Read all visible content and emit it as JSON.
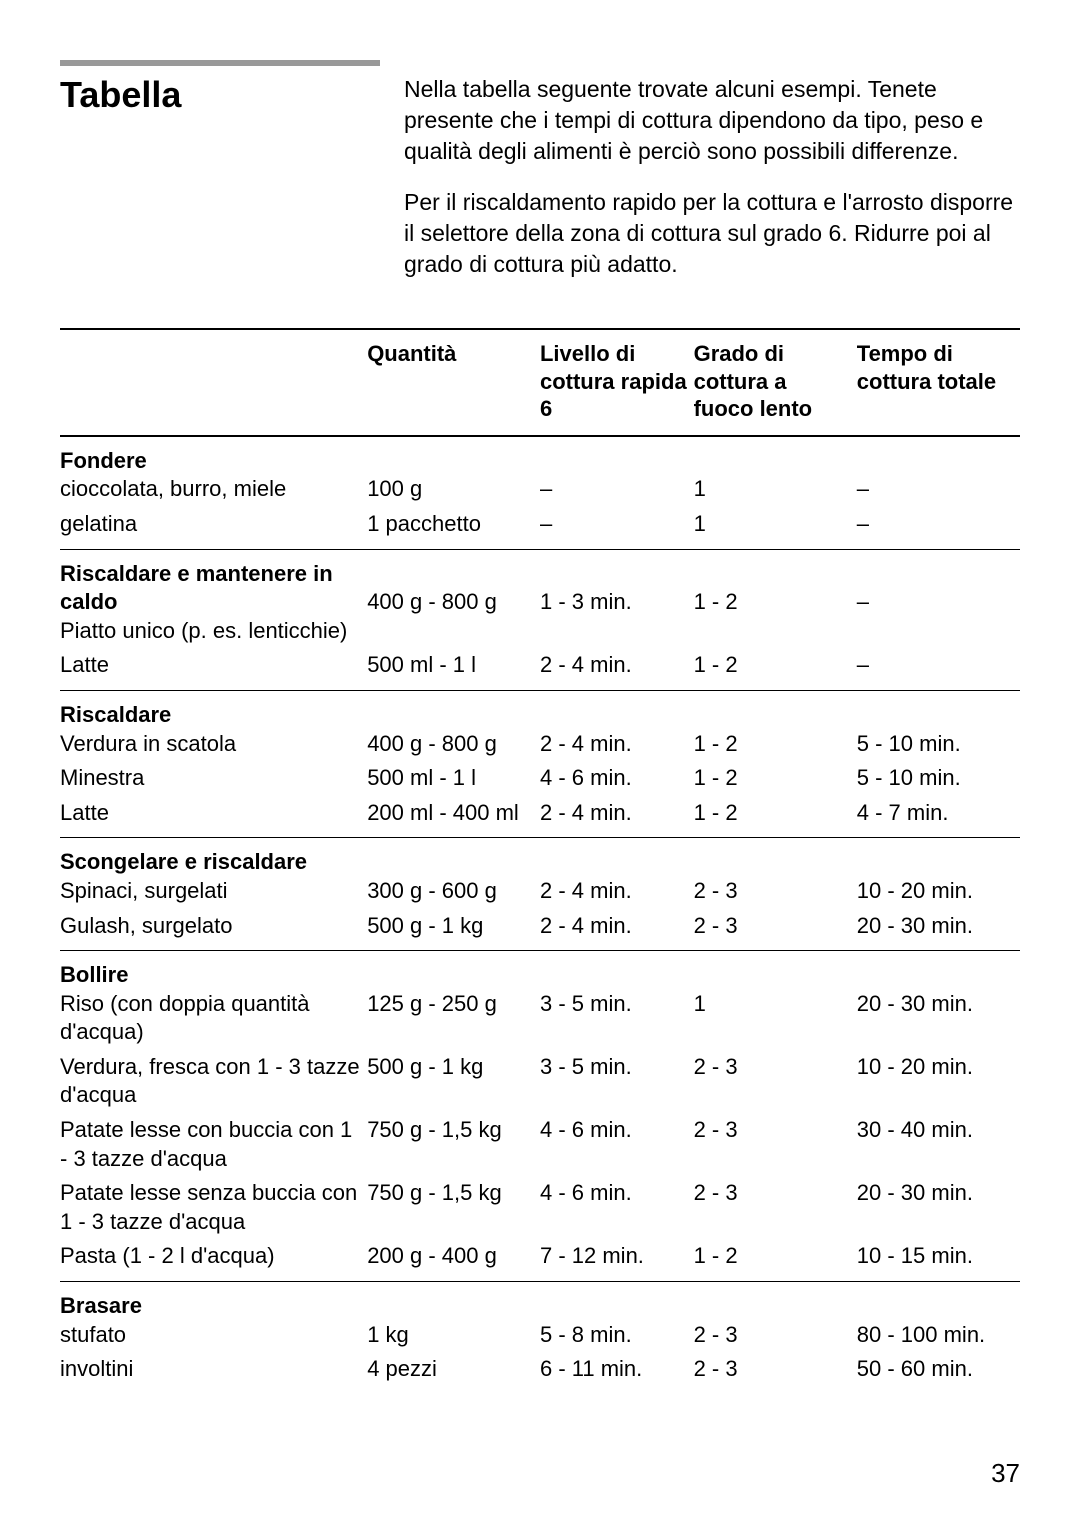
{
  "header": {
    "title": "Tabella",
    "intro1": "Nella tabella seguente trovate alcuni esempi. Tenete presente che i tempi di cottura dipendono da tipo, peso e qualità degli alimenti è perciò sono possibili differenze.",
    "intro2": "Per il riscaldamento rapido per la cottura e l'arrosto disporre il selettore della zona di cottura sul grado 6. Ridurre poi al grado di cottura più adatto."
  },
  "columns": {
    "item": "",
    "qty": "Quantità",
    "rapid": "Livello di cottura rapida 6",
    "slow": "Grado di cottura a fuoco lento",
    "total": "Tempo di cottura totale"
  },
  "groups": [
    {
      "heading": "Fondere",
      "rows": [
        {
          "item": "cioccolata, burro, miele",
          "qty": "100 g",
          "rapid": "–",
          "slow": "1",
          "total": "–"
        },
        {
          "item": "gelatina",
          "qty": "1 pacchetto",
          "rapid": "–",
          "slow": "1",
          "total": "–"
        }
      ]
    },
    {
      "heading": "Riscaldare e mantenere in caldo",
      "rows": [
        {
          "item": "Piatto unico (p. es. lenticchie)",
          "qty": "400 g - 800 g",
          "rapid": "1 - 3 min.",
          "slow": "1 - 2",
          "total": "–"
        },
        {
          "item": "Latte",
          "qty": "500 ml - 1 l",
          "rapid": "2 - 4 min.",
          "slow": "1 - 2",
          "total": "–"
        }
      ]
    },
    {
      "heading": "Riscaldare",
      "rows": [
        {
          "item": "Verdura in scatola",
          "qty": "400 g - 800 g",
          "rapid": "2 - 4 min.",
          "slow": "1 - 2",
          "total": "5 - 10 min."
        },
        {
          "item": "Minestra",
          "qty": "500 ml - 1 l",
          "rapid": "4 - 6 min.",
          "slow": "1 - 2",
          "total": "5 - 10 min."
        },
        {
          "item": "Latte",
          "qty": "200 ml - 400 ml",
          "rapid": "2 - 4 min.",
          "slow": "1 - 2",
          "total": "4 - 7 min."
        }
      ]
    },
    {
      "heading": "Scongelare e riscaldare",
      "rows": [
        {
          "item": "Spinaci, surgelati",
          "qty": "300 g - 600 g",
          "rapid": "2 - 4 min.",
          "slow": "2 - 3",
          "total": "10 - 20 min."
        },
        {
          "item": "Gulash, surgelato",
          "qty": "500 g - 1 kg",
          "rapid": "2 - 4 min.",
          "slow": "2 - 3",
          "total": "20 - 30 min."
        }
      ]
    },
    {
      "heading": "Bollire",
      "rows": [
        {
          "item": "Riso (con doppia quantità d'acqua)",
          "qty": "125 g - 250 g",
          "rapid": "3 - 5 min.",
          "slow": "1",
          "total": "20 - 30 min."
        },
        {
          "item": "Verdura, fresca con 1 - 3 tazze d'acqua",
          "qty": "500 g - 1 kg",
          "rapid": "3 - 5 min.",
          "slow": "2 - 3",
          "total": "10 - 20 min."
        },
        {
          "item": "Patate lesse con buccia con 1 - 3 tazze d'acqua",
          "qty": "750 g - 1,5 kg",
          "rapid": "4 - 6 min.",
          "slow": "2 - 3",
          "total": "30 - 40 min."
        },
        {
          "item": "Patate lesse senza buccia con 1 - 3 tazze d'acqua",
          "qty": "750 g - 1,5 kg",
          "rapid": "4 - 6 min.",
          "slow": "2 - 3",
          "total": "20 - 30 min."
        },
        {
          "item": "Pasta (1 - 2 l d'acqua)",
          "qty": "200 g - 400 g",
          "rapid": "7 - 12 min.",
          "slow": "1 - 2",
          "total": "10 - 15 min."
        }
      ]
    },
    {
      "heading": "Brasare",
      "rows": [
        {
          "item": "stufato",
          "qty": "1 kg",
          "rapid": "5 - 8 min.",
          "slow": "2 - 3",
          "total": "80 - 100 min."
        },
        {
          "item": "involtini",
          "qty": "4 pezzi",
          "rapid": "6 - 11 min.",
          "slow": "2 - 3",
          "total": "50 - 60 min."
        }
      ]
    }
  ],
  "pageNumber": "37"
}
